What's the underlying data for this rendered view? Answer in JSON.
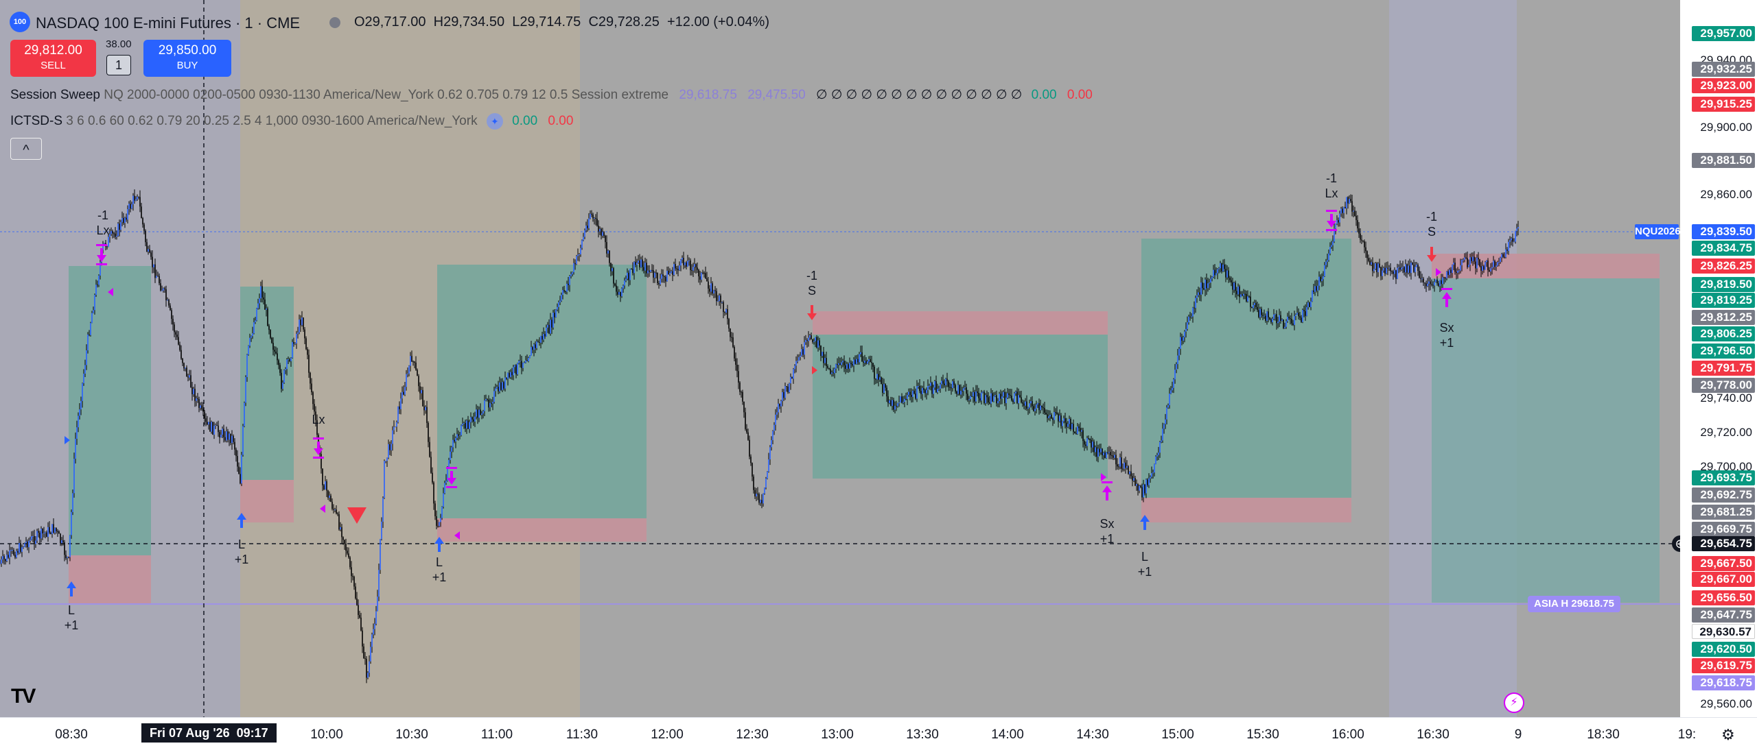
{
  "header": {
    "logo_text": "100",
    "symbol_title": "NASDAQ 100 E-mini Futures · 1 · CME",
    "ohlc_open": "O29,717.00",
    "ohlc_high": "H29,734.50",
    "ohlc_low": "L29,714.75",
    "ohlc_close": "C29,728.25",
    "ohlc_change": "+12.00 (+0.04%)",
    "status_dot_color": "#787b86"
  },
  "trade": {
    "sell_price": "29,812.00",
    "sell_label": "SELL",
    "spread": "38.00",
    "quantity": "1",
    "buy_price": "29,850.00",
    "buy_label": "BUY"
  },
  "indicators": {
    "session_sweep": {
      "name": "Session Sweep",
      "args": "NQ 2000-0000 0200-0500 0930-1130 America/New_York 0.62 0.705 0.79 12 0.5 Session extreme",
      "value_1": "29,618.75",
      "value_2": "29,475.50",
      "zeros": "∅ ∅ ∅ ∅ ∅ ∅ ∅ ∅ ∅ ∅ ∅ ∅ ∅ ∅",
      "value_green": "0.00",
      "value_red": "0.00"
    },
    "ictsd": {
      "name": "ICTSD-S",
      "args": "3 6 0.6 60 0.62 0.79 20 0.25 2.5 4 1,000 0930-1600 America/New_York",
      "value_green": "0.00",
      "value_red": "0.00"
    },
    "collapse_glyph": "^"
  },
  "time_axis": {
    "labels": [
      "08:30",
      "10:00",
      "10:30",
      "11:00",
      "11:30",
      "12:00",
      "12:30",
      "13:00",
      "13:30",
      "14:00",
      "14:30",
      "15:00",
      "15:30",
      "16:00",
      "16:30",
      "9",
      "18:30",
      "19:"
    ],
    "crosshair_label": "Fri 07 Aug '26  09:17"
  },
  "price_axis": {
    "labels": [
      {
        "text": "29,957.00",
        "style": "green",
        "price": 29957.0
      },
      {
        "text": "29,940.00",
        "style": "plain",
        "price": 29940.0
      },
      {
        "text": "29,932.25",
        "style": "gray",
        "price": 29932.25
      },
      {
        "text": "29,923.00",
        "style": "red",
        "price": 29923.0
      },
      {
        "text": "29,915.25",
        "style": "red",
        "price": 29915.25
      },
      {
        "text": "29,900.00",
        "style": "plain",
        "price": 29900.0
      },
      {
        "text": "29,881.50",
        "style": "gray",
        "price": 29881.5
      },
      {
        "text": "29,860.00",
        "style": "plain",
        "price": 29860.0
      },
      {
        "text": "29,839.50",
        "style": "blue",
        "price": 29839.5
      },
      {
        "text": "29,834.75",
        "style": "green",
        "price": 29834.75
      },
      {
        "text": "29,826.25",
        "style": "red",
        "price": 29826.25
      },
      {
        "text": "29,819.50",
        "style": "green",
        "price": 29819.5
      },
      {
        "text": "29,819.25",
        "style": "green",
        "price": 29819.25
      },
      {
        "text": "29,812.25",
        "style": "gray",
        "price": 29812.25
      },
      {
        "text": "29,806.25",
        "style": "green",
        "price": 29806.25
      },
      {
        "text": "29,796.50",
        "style": "green",
        "price": 29796.5
      },
      {
        "text": "29,791.75",
        "style": "red",
        "price": 29791.75
      },
      {
        "text": "29,778.00",
        "style": "gray",
        "price": 29778.0
      },
      {
        "text": "29,740.00",
        "style": "plain",
        "price": 29740.0
      },
      {
        "text": "29,720.00",
        "style": "plain",
        "price": 29720.0
      },
      {
        "text": "29,700.00",
        "style": "plain",
        "price": 29700.0
      },
      {
        "text": "29,693.75",
        "style": "green",
        "price": 29693.75
      },
      {
        "text": "29,692.75",
        "style": "gray",
        "price": 29692.75
      },
      {
        "text": "29,681.25",
        "style": "gray",
        "price": 29681.25
      },
      {
        "text": "29,669.75",
        "style": "gray",
        "price": 29669.75
      },
      {
        "text": "29,654.75",
        "style": "black",
        "price": 29654.75
      },
      {
        "text": "29,667.50",
        "style": "red",
        "price": 29667.5
      },
      {
        "text": "29,667.00",
        "style": "red",
        "price": 29667.0
      },
      {
        "text": "29,656.50",
        "style": "red",
        "price": 29656.5
      },
      {
        "text": "29,647.75",
        "style": "gray",
        "price": 29647.75
      },
      {
        "text": "29,630.57",
        "style": "white",
        "price": 29630.57
      },
      {
        "text": "29,620.50",
        "style": "green",
        "price": 29620.5
      },
      {
        "text": "29,619.75",
        "style": "red",
        "price": 29619.75
      },
      {
        "text": "29,618.75",
        "style": "purple",
        "price": 29618.75
      },
      {
        "text": "29,560.00",
        "style": "plain",
        "price": 29560.0
      }
    ],
    "symbol_tag": "NQU2026",
    "asia_label": "ASIA H 29618.75"
  },
  "markers": [
    {
      "lines": [
        "-1",
        "Lx"
      ],
      "name": "marker-lx-1"
    },
    {
      "lines": [
        "L",
        "+1"
      ],
      "name": "marker-l-1"
    },
    {
      "lines": [
        "L",
        "+1"
      ],
      "name": "marker-l-2"
    },
    {
      "lines": [
        "Lx"
      ],
      "name": "marker-lx-2"
    },
    {
      "lines": [
        "L",
        "+1"
      ],
      "name": "marker-l-3"
    },
    {
      "lines": [
        "-1",
        "S"
      ],
      "name": "marker-s-1"
    },
    {
      "lines": [
        "Sx",
        "+1"
      ],
      "name": "marker-sx-1"
    },
    {
      "lines": [
        "L",
        "+1"
      ],
      "name": "marker-l-4"
    },
    {
      "lines": [
        "-1",
        "Lx"
      ],
      "name": "marker-lx-3"
    },
    {
      "lines": [
        "-1",
        "S"
      ],
      "name": "marker-s-2"
    },
    {
      "lines": [
        "Sx",
        "+1"
      ],
      "name": "marker-sx-2"
    }
  ],
  "colors": {
    "green": "#089981",
    "red": "#f23645",
    "blue": "#2962ff",
    "purple": "#9c8cf5",
    "magenta": "#d500f9",
    "axis_blue": "#2962ff"
  },
  "tv_logo": "TV"
}
